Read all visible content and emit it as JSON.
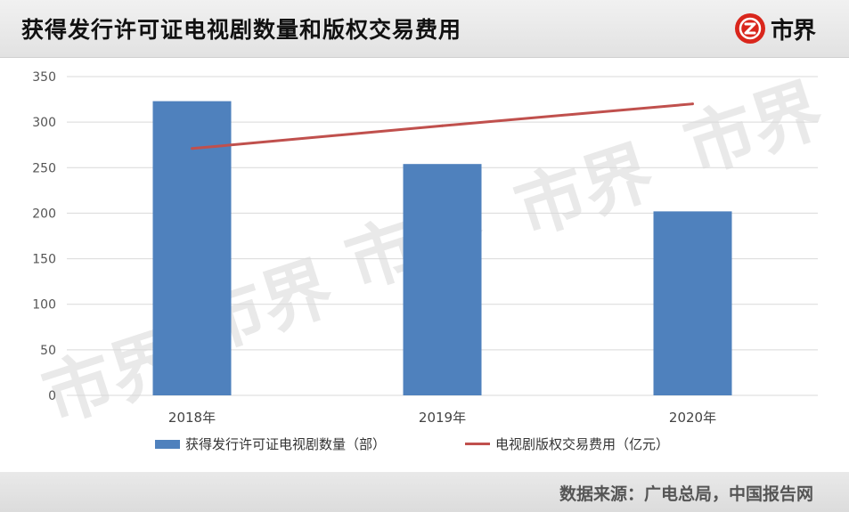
{
  "header": {
    "title": "获得发行许可证电视剧数量和版权交易费用",
    "brand_text": "市界"
  },
  "watermark_text": "市界",
  "footer": {
    "source": "数据来源：广电总局，中国报告网"
  },
  "chart_data": {
    "type": "bar",
    "categories": [
      "2018年",
      "2019年",
      "2020年"
    ],
    "series": [
      {
        "name": "获得发行许可证电视剧数量（部）",
        "kind": "bar",
        "color": "#4f81bd",
        "values": [
          323,
          254,
          202
        ]
      },
      {
        "name": "电视剧版权交易费用（亿元）",
        "kind": "line",
        "color": "#c0504d",
        "values": [
          271,
          296,
          320
        ]
      }
    ],
    "ylim": [
      0,
      350
    ],
    "yticks": [
      "0",
      "50",
      "100",
      "150",
      "200",
      "250",
      "300",
      "350"
    ],
    "grid": true,
    "legend": "bottom"
  }
}
